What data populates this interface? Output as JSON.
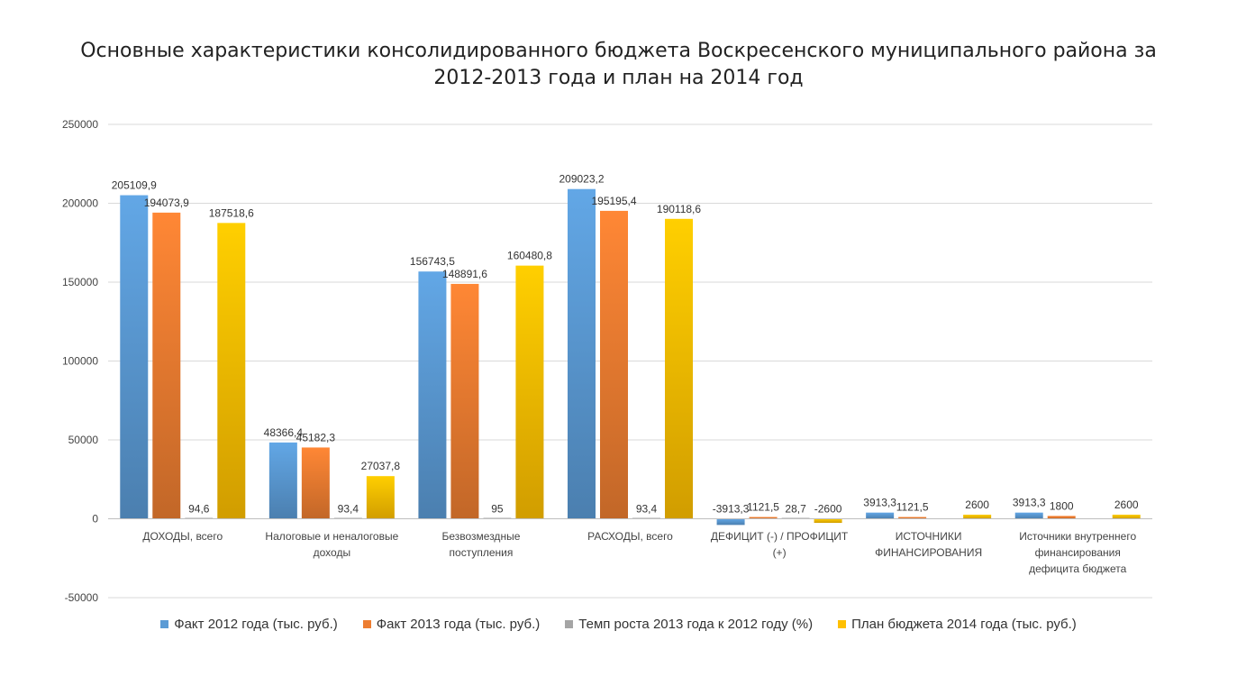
{
  "chart_data": {
    "type": "bar",
    "title_lines": [
      "Основные характеристики консолидированного бюджета Воскресенского муниципального района за",
      "2012-2013 года и план на 2014 год"
    ],
    "ylim": [
      -50000,
      250000
    ],
    "yticks": [
      250000,
      200000,
      150000,
      100000,
      50000,
      0,
      -50000
    ],
    "ytick_labels": [
      "250000",
      "200000",
      "150000",
      "100000",
      "50000",
      "0",
      "-50000"
    ],
    "grid": true,
    "legend_position": "bottom",
    "categories": [
      [
        "ДОХОДЫ, всего"
      ],
      [
        "Налоговые и неналоговые",
        "доходы"
      ],
      [
        "Безвозмездные",
        "поступления"
      ],
      [
        "РАСХОДЫ, всего"
      ],
      [
        "ДЕФИЦИТ (-) / ПРОФИЦИТ",
        "(+)"
      ],
      [
        "ИСТОЧНИКИ",
        "ФИНАНСИРОВАНИЯ"
      ],
      [
        "Источники внутреннего",
        "финансирования",
        "дефицита бюджета"
      ]
    ],
    "series": [
      {
        "name": "Факт 2012 года (тыс. руб.)",
        "color": "#5B9BD5",
        "values": [
          205109.9,
          48366.4,
          156743.5,
          209023.2,
          -3913.3,
          3913.3,
          3913.3
        ],
        "labels": [
          "205109,9",
          "48366,4",
          "156743,5",
          "209023,2",
          "-3913,3",
          "3913,3",
          "3913,3"
        ]
      },
      {
        "name": "Факт 2013 года (тыс. руб.)",
        "color": "#ED7D31",
        "values": [
          194073.9,
          45182.3,
          148891.6,
          195195.4,
          1121.5,
          1121.5,
          1800
        ],
        "labels": [
          "194073,9",
          "45182,3",
          "148891,6",
          "195195,4",
          "1121,5",
          "1121,5",
          "1800"
        ]
      },
      {
        "name": "Темп роста 2013 года к 2012 году (%)",
        "color": "#A5A5A5",
        "values": [
          94.6,
          93.4,
          95,
          93.4,
          28.7,
          null,
          null
        ],
        "labels": [
          "94,6",
          "93,4",
          "95",
          "93,4",
          "28,7",
          null,
          null
        ]
      },
      {
        "name": "План бюджета 2014 года (тыс. руб.)",
        "color": "#FFC000",
        "values": [
          187518.6,
          27037.8,
          160480.8,
          190118.6,
          -2600,
          2600,
          2600
        ],
        "labels": [
          "187518,6",
          "27037,8",
          "160480,8",
          "190118,6",
          "-2600",
          "2600",
          "2600"
        ]
      }
    ]
  }
}
